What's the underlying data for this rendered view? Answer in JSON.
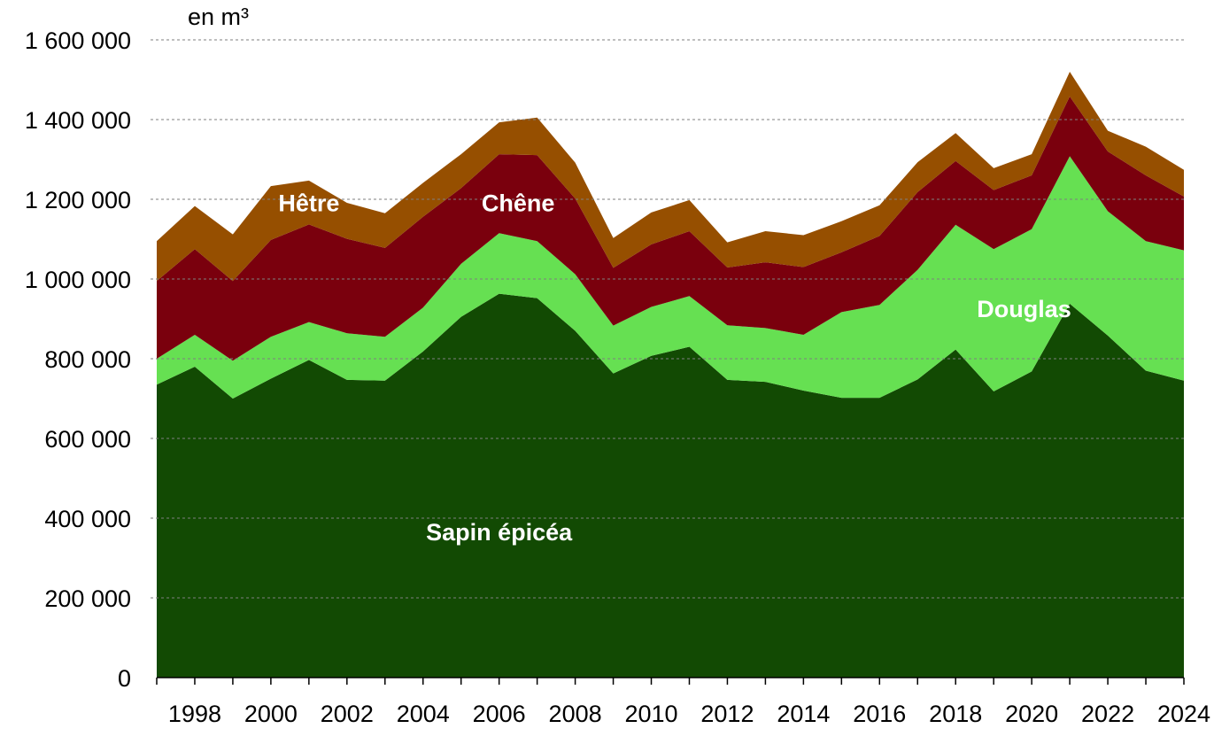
{
  "chart_data": {
    "type": "area",
    "stacked": true,
    "unit_label": "en m³",
    "x": [
      1997,
      1998,
      1999,
      2000,
      2001,
      2002,
      2003,
      2004,
      2005,
      2006,
      2007,
      2008,
      2009,
      2010,
      2011,
      2012,
      2013,
      2014,
      2015,
      2016,
      2017,
      2018,
      2019,
      2020,
      2021,
      2022,
      2023,
      2024
    ],
    "x_tick_labels": [
      "1998",
      "2000",
      "2002",
      "2004",
      "2006",
      "2008",
      "2010",
      "2012",
      "2014",
      "2016",
      "2018",
      "2020",
      "2022",
      "2024"
    ],
    "y_tick_labels": [
      "0",
      "200 000",
      "400 000",
      "600 000",
      "800 000",
      "1 000 000",
      "1 200 000",
      "1 400 000",
      "1 600 000"
    ],
    "ylim": [
      0,
      1600000
    ],
    "grid": true,
    "series": [
      {
        "name": "Sapin épicéa",
        "color": "#124a03",
        "values": [
          735000,
          780000,
          700000,
          750000,
          797000,
          747000,
          745000,
          818000,
          905000,
          963000,
          952000,
          870000,
          763000,
          807000,
          830000,
          747000,
          742000,
          720000,
          702000,
          702000,
          748000,
          823000,
          718000,
          768000,
          938000,
          858000,
          770000,
          745000
        ]
      },
      {
        "name": "Douglas",
        "color": "#66e052",
        "values": [
          65000,
          80000,
          95000,
          105000,
          95000,
          117000,
          110000,
          110000,
          133000,
          152000,
          143000,
          142000,
          120000,
          123000,
          127000,
          137000,
          135000,
          140000,
          215000,
          233000,
          275000,
          313000,
          357000,
          357000,
          370000,
          312000,
          325000,
          327000
        ]
      },
      {
        "name": "Chêne",
        "color": "#7a000d",
        "values": [
          195000,
          215000,
          200000,
          243000,
          245000,
          237000,
          223000,
          228000,
          190000,
          198000,
          216000,
          190000,
          145000,
          157000,
          163000,
          145000,
          165000,
          170000,
          150000,
          173000,
          195000,
          160000,
          148000,
          135000,
          150000,
          150000,
          165000,
          135000
        ]
      },
      {
        "name": "Hêtre",
        "color": "#964f00",
        "values": [
          100000,
          108000,
          117000,
          135000,
          110000,
          90000,
          87000,
          85000,
          85000,
          80000,
          94000,
          90000,
          75000,
          80000,
          78000,
          63000,
          78000,
          80000,
          78000,
          77000,
          75000,
          70000,
          55000,
          53000,
          62000,
          52000,
          72000,
          67000
        ]
      }
    ]
  }
}
